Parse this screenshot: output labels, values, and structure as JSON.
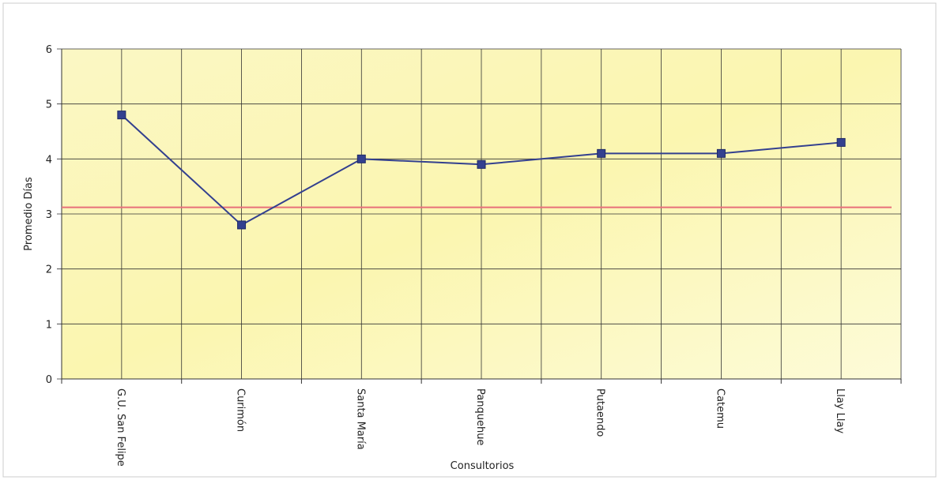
{
  "chart_data": {
    "type": "line",
    "y_label": "Promedio Días",
    "x_label": "Consultorios",
    "categories": [
      "G.U. San Felipe",
      "Curimón",
      "Santa María",
      "Panquehue",
      "Putaendo",
      "Catemu",
      "Llay Llay"
    ],
    "series": [
      {
        "color": "#33408f",
        "values": [
          4.8,
          2.8,
          4.0,
          3.9,
          4.1,
          4.1,
          4.3
        ]
      }
    ],
    "reference": {
      "value": 3.12,
      "color": "#e8707a"
    },
    "ylim": [
      0,
      6
    ],
    "yticks": [
      0,
      1,
      2,
      3,
      4,
      5,
      6
    ],
    "grid": true
  }
}
